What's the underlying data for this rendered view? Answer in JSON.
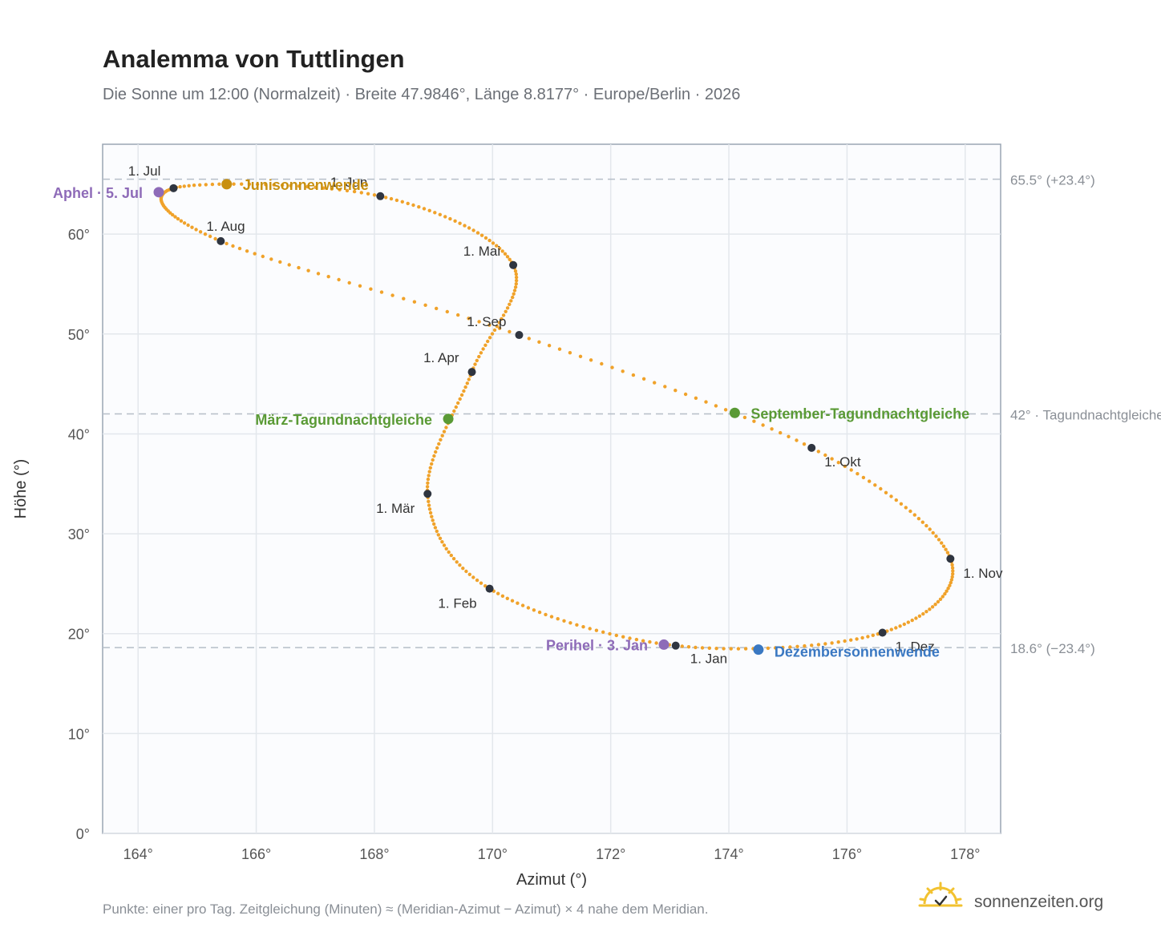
{
  "chart_data": {
    "type": "scatter",
    "title": "Analemma von Tuttlingen",
    "subtitle": "Die Sonne um 12:00 (Normalzeit) · Breite 47.9846°, Länge 8.8177° · Europe/Berlin · 2026",
    "xlabel": "Azimut (°)",
    "ylabel": "Höhe (°)",
    "xlim": [
      163.4,
      178.6
    ],
    "ylim": [
      0,
      69
    ],
    "xticks": [
      "164°",
      "166°",
      "168°",
      "170°",
      "172°",
      "174°",
      "176°",
      "178°"
    ],
    "yticks": [
      "0°",
      "10°",
      "20°",
      "30°",
      "40°",
      "50°",
      "60°"
    ],
    "grid": true,
    "series": [
      {
        "color": "#f0a22a",
        "x": [
          173.1,
          169.95,
          168.9,
          169.65,
          170.35,
          168.1,
          164.6,
          165.4,
          170.45,
          175.4,
          177.75,
          176.6,
          173.1
        ],
        "y": [
          18.8,
          24.5,
          34.0,
          46.2,
          56.9,
          63.8,
          64.6,
          59.3,
          49.9,
          38.6,
          27.5,
          20.1,
          18.8
        ]
      }
    ],
    "reference_lines": [
      {
        "y": 65.5,
        "label": "65.5° (+23.4°)"
      },
      {
        "y": 42.0,
        "label": "42° · Tagundnachtgleiche"
      },
      {
        "y": 18.6,
        "label": "18.6° (−23.4°)"
      }
    ],
    "months": [
      {
        "label": "1. Jan",
        "x": 173.1,
        "y": 18.8
      },
      {
        "label": "1. Feb",
        "x": 169.95,
        "y": 24.5
      },
      {
        "label": "1. Mär",
        "x": 168.9,
        "y": 34.0
      },
      {
        "label": "1. Apr",
        "x": 169.65,
        "y": 46.2
      },
      {
        "label": "1. Mai",
        "x": 170.35,
        "y": 56.9
      },
      {
        "label": "1. Jun",
        "x": 168.1,
        "y": 63.8
      },
      {
        "label": "1. Jul",
        "x": 164.6,
        "y": 64.6
      },
      {
        "label": "1. Aug",
        "x": 165.4,
        "y": 59.3
      },
      {
        "label": "1. Sep",
        "x": 170.45,
        "y": 49.9
      },
      {
        "label": "1. Okt",
        "x": 175.4,
        "y": 38.6
      },
      {
        "label": "1. Nov",
        "x": 177.75,
        "y": 27.5
      },
      {
        "label": "1. Dez",
        "x": 176.6,
        "y": 20.1
      }
    ],
    "events": [
      {
        "label": "Junisonnenwende",
        "x": 165.5,
        "y": 65.0,
        "color": "#c89010"
      },
      {
        "label": "Aphel · 5. Jul",
        "x": 164.35,
        "y": 64.2,
        "color": "#8e6bb8"
      },
      {
        "label": "März-Tagundnachtgleiche",
        "x": 169.25,
        "y": 41.5,
        "color": "#5a9a35"
      },
      {
        "label": "September-Tagundnachtgleiche",
        "x": 174.1,
        "y": 42.1,
        "color": "#5a9a35"
      },
      {
        "label": "Perihel · 3. Jan",
        "x": 172.9,
        "y": 18.9,
        "color": "#8e6bb8"
      },
      {
        "label": "Dezembersonnenwende",
        "x": 174.5,
        "y": 18.4,
        "color": "#3a78c2"
      }
    ]
  },
  "footnote": "Punkte: einer pro Tag. Zeitgleichung (Minuten) ≈ (Meridian-Azimut − Azimut) × 4 nahe dem Meridian.",
  "brand": {
    "name": "sonnenzeiten.org",
    "logo_icon": "sun-check-icon",
    "logo_color": "#f2c230"
  }
}
